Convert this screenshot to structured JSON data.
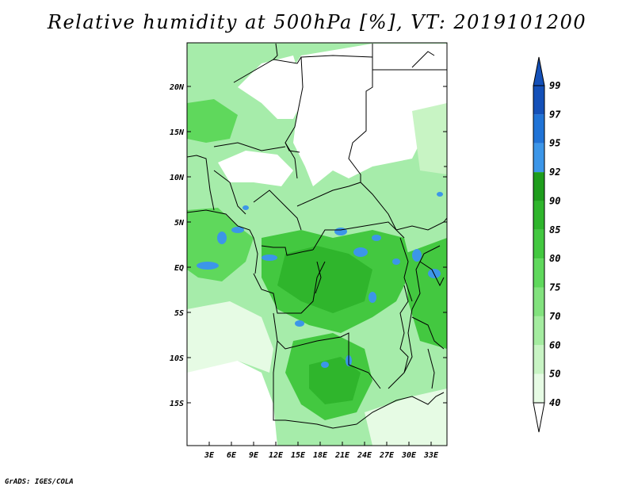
{
  "title": "Relative humidity at 500hPa [%], VT: 2019101200",
  "footer": "GrADS: IGES/COLA",
  "lat_labels": [
    "20N",
    "15N",
    "10N",
    "5N",
    "EQ",
    "5S",
    "10S",
    "15S"
  ],
  "lon_labels": [
    "3E",
    "6E",
    "9E",
    "12E",
    "15E",
    "18E",
    "21E",
    "24E",
    "27E",
    "30E",
    "33E"
  ],
  "colorbar": {
    "levels": [
      "40",
      "50",
      "60",
      "70",
      "75",
      "80",
      "85",
      "90",
      "92",
      "95",
      "97",
      "99"
    ],
    "colors": [
      "#ffffff",
      "#e6fbe4",
      "#c8f4c4",
      "#a4eca0",
      "#82e27e",
      "#5fd85c",
      "#43c840",
      "#2fb52c",
      "#1e9d1c",
      "#3c96e8",
      "#2073d6",
      "#1450b8"
    ]
  },
  "colors": {
    "land_base": "#a6ecaa",
    "low": "#e8fbe6",
    "mid": "#78dc78",
    "high": "#35b838",
    "very_high": "#1e9d1c",
    "saturated": "#3c96e8",
    "border": "#000000"
  }
}
